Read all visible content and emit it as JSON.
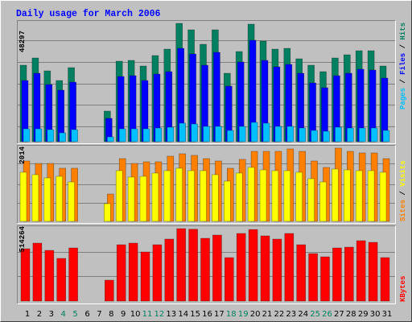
{
  "title": "Daily usage for March 2006",
  "legend_separator": " / ",
  "chart_data": [
    {
      "type": "bar",
      "ylim": [
        0,
        48297
      ],
      "yticks": [
        48297
      ],
      "series": [
        {
          "name": "Pages",
          "color": "#00c0ff",
          "values": [
            5256,
            5256,
            4928,
            3614,
            4928,
            0,
            0,
            1971,
            5256,
            5256,
            5256,
            5585,
            5913,
            7556,
            7227,
            6242,
            6242,
            4599,
            6242,
            7884,
            7556,
            6242,
            6242,
            5585,
            4599,
            4271,
            5913,
            5585,
            5585,
            5585,
            4599
          ]
        },
        {
          "name": "Files",
          "color": "#0000ff",
          "values": [
            24966,
            27923,
            23324,
            21024,
            24309,
            0,
            0,
            9527,
            26609,
            26937,
            24966,
            27594,
            28580,
            38106,
            35807,
            31208,
            36464,
            22667,
            32522,
            41391,
            33179,
            30551,
            31536,
            27923,
            23981,
            22010,
            26937,
            27923,
            29565,
            29237,
            25952
          ]
        },
        {
          "name": "Hits",
          "color": "#008060",
          "values": [
            31208,
            34165,
            28908,
            24966,
            30222,
            0,
            0,
            12483,
            32850,
            33179,
            30879,
            35150,
            37778,
            48297,
            45662,
            39749,
            45662,
            27923,
            36792,
            47961,
            41063,
            37778,
            38106,
            33836,
            31208,
            28580,
            34165,
            35479,
            37121,
            37121,
            30879
          ]
        }
      ]
    },
    {
      "type": "bar",
      "ylim": [
        0,
        2014
      ],
      "yticks": [
        2014
      ],
      "series": [
        {
          "name": "Sites",
          "color": "#ff8000",
          "values": [
            1660,
            1593,
            1593,
            1461,
            1461,
            0,
            0,
            752,
            1726,
            1593,
            1638,
            1638,
            1793,
            1859,
            1815,
            1726,
            1660,
            1461,
            1704,
            1925,
            1925,
            1925,
            1992,
            1925,
            1660,
            1483,
            2014,
            1925,
            1881,
            1881,
            1726
          ]
        },
        {
          "name": "Visits",
          "color": "#ffff00",
          "values": [
            1350,
            1284,
            1195,
            1239,
            1084,
            0,
            0,
            487,
            1394,
            1217,
            1239,
            1328,
            1394,
            1461,
            1394,
            1394,
            1284,
            1107,
            1328,
            1483,
            1416,
            1394,
            1394,
            1350,
            1173,
            1084,
            1439,
            1416,
            1394,
            1394,
            1350
          ]
        }
      ]
    },
    {
      "type": "bar",
      "ylim": [
        0,
        514264
      ],
      "yticks": [
        514264
      ],
      "categories": [
        "1",
        "2",
        "3",
        "4",
        "5",
        "6",
        "7",
        "8",
        "9",
        "10",
        "11",
        "12",
        "13",
        "14",
        "15",
        "16",
        "17",
        "18",
        "19",
        "20",
        "21",
        "22",
        "23",
        "24",
        "25",
        "26",
        "27",
        "28",
        "29",
        "30",
        "31"
      ],
      "category_colors": [
        "#000000",
        "#000000",
        "#000000",
        "#008060",
        "#008060",
        "#000000",
        "#000000",
        "#000000",
        "#000000",
        "#000000",
        "#008060",
        "#008060",
        "#000000",
        "#000000",
        "#000000",
        "#000000",
        "#000000",
        "#008060",
        "#008060",
        "#000000",
        "#000000",
        "#000000",
        "#000000",
        "#000000",
        "#008060",
        "#008060",
        "#000000",
        "#000000",
        "#000000",
        "#000000",
        "#000000"
      ],
      "series": [
        {
          "name": "KBytes",
          "color": "#ff0000",
          "values": [
            371428,
            411428,
            360000,
            302857,
            377143,
            0,
            0,
            148571,
            400000,
            411428,
            348571,
            400000,
            440000,
            514264,
            510000,
            445714,
            468571,
            308571,
            480000,
            508000,
            462857,
            440000,
            480000,
            400000,
            337143,
            314286,
            377143,
            382857,
            428571,
            417143,
            308571
          ]
        }
      ]
    }
  ]
}
